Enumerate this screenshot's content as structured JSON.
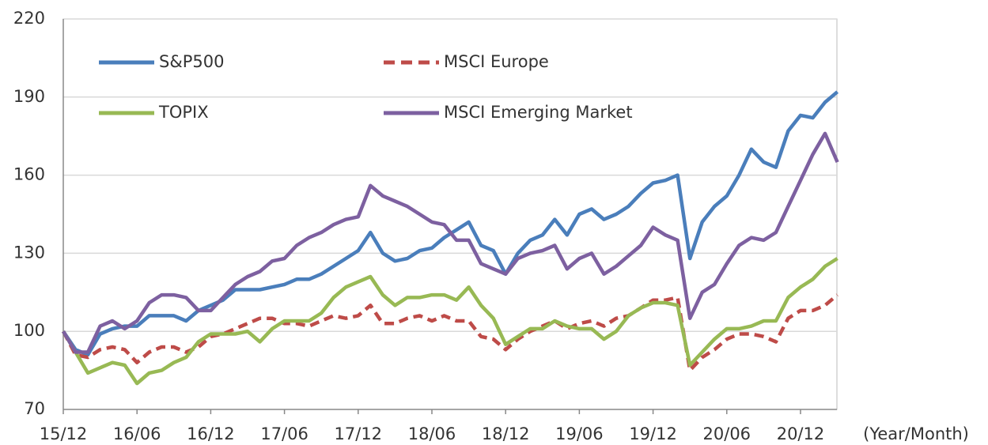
{
  "chart_data": {
    "type": "line",
    "x_label": "(Year/Month)",
    "categories": [
      "15/12",
      null,
      null,
      null,
      null,
      null,
      "16/06",
      null,
      null,
      null,
      null,
      null,
      "16/12",
      null,
      null,
      null,
      null,
      null,
      "17/06",
      null,
      null,
      null,
      null,
      null,
      "17/12",
      null,
      null,
      null,
      null,
      null,
      "18/06",
      null,
      null,
      null,
      null,
      null,
      "18/12",
      null,
      null,
      null,
      null,
      null,
      "19/06",
      null,
      null,
      null,
      null,
      null,
      "19/12",
      null,
      null,
      null,
      null,
      null,
      "20/06",
      null,
      null,
      null,
      null,
      null,
      "20/12",
      null,
      null,
      null
    ],
    "series": [
      {
        "name": "S&P500",
        "color": "#4a7ebb",
        "dash": false,
        "values": [
          100,
          93,
          91,
          99,
          101,
          102,
          102,
          106,
          106,
          106,
          104,
          108,
          110,
          112,
          116,
          116,
          116,
          117,
          118,
          120,
          120,
          122,
          125,
          128,
          131,
          138,
          130,
          127,
          128,
          131,
          132,
          136,
          139,
          142,
          133,
          131,
          122,
          130,
          135,
          137,
          143,
          137,
          145,
          147,
          143,
          145,
          148,
          153,
          157,
          158,
          160,
          128,
          142,
          148,
          152,
          160,
          170,
          165,
          163,
          177,
          183,
          182,
          188,
          192
        ]
      },
      {
        "name": "MSCI Europe",
        "color": "#be4b48",
        "dash": true,
        "values": [
          100,
          91,
          90,
          93,
          94,
          93,
          88,
          92,
          94,
          94,
          92,
          94,
          98,
          99,
          101,
          103,
          105,
          105,
          103,
          103,
          102,
          104,
          106,
          105,
          106,
          110,
          103,
          103,
          105,
          106,
          104,
          106,
          104,
          104,
          98,
          97,
          93,
          97,
          100,
          102,
          104,
          101,
          103,
          104,
          102,
          105,
          106,
          109,
          112,
          112,
          113,
          85,
          90,
          93,
          97,
          99,
          99,
          98,
          96,
          105,
          108,
          108,
          110,
          114
        ]
      },
      {
        "name": "TOPIX",
        "color": "#98b954",
        "dash": false,
        "values": [
          100,
          92,
          84,
          86,
          88,
          87,
          80,
          84,
          85,
          88,
          90,
          96,
          99,
          99,
          99,
          100,
          96,
          101,
          104,
          104,
          104,
          107,
          113,
          117,
          119,
          121,
          114,
          110,
          113,
          113,
          114,
          114,
          112,
          117,
          110,
          105,
          95,
          98,
          101,
          101,
          104,
          102,
          101,
          101,
          97,
          100,
          106,
          109,
          111,
          111,
          110,
          87,
          92,
          97,
          101,
          101,
          102,
          104,
          104,
          113,
          117,
          120,
          125,
          128
        ]
      },
      {
        "name": "MSCI Emerging Market",
        "color": "#7d60a0",
        "dash": false,
        "values": [
          100,
          92,
          92,
          102,
          104,
          101,
          104,
          111,
          114,
          114,
          113,
          108,
          108,
          113,
          118,
          121,
          123,
          127,
          128,
          133,
          136,
          138,
          141,
          143,
          144,
          156,
          152,
          150,
          148,
          145,
          142,
          141,
          135,
          135,
          126,
          124,
          122,
          128,
          130,
          131,
          133,
          124,
          128,
          130,
          122,
          125,
          129,
          133,
          140,
          137,
          135,
          105,
          115,
          118,
          126,
          133,
          136,
          135,
          138,
          148,
          158,
          168,
          176,
          165
        ]
      }
    ],
    "ylim": [
      70,
      220
    ],
    "yticks": [
      70,
      100,
      130,
      160,
      190,
      220
    ],
    "grid": true,
    "legend": "upper-left"
  }
}
